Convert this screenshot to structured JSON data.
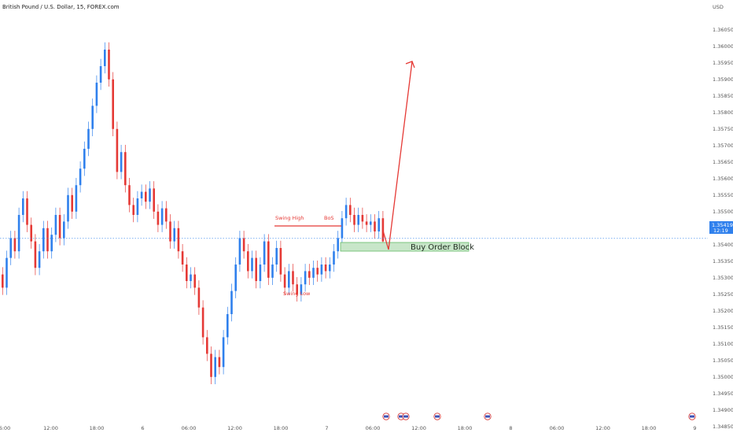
{
  "header": {
    "symbol": "British Pound / U.S. Dollar, 15, FOREX.com"
  },
  "colors": {
    "up": "#2f80ed",
    "down": "#e53935",
    "annotation": "#e53935",
    "block_fill": "#c8e6c9",
    "block_stroke": "#66bb6a",
    "price_tag": "#2f80ed"
  },
  "chart_data": {
    "type": "candlestick",
    "title": "British Pound / U.S. Dollar, 15, FOREX.com",
    "xlabel": "",
    "ylabel": "",
    "currency": "USD",
    "ylim": [
      1.3484,
      1.3614
    ],
    "y_ticks": [
      "1.36050",
      "1.36000",
      "1.35950",
      "1.35900",
      "1.35850",
      "1.35800",
      "1.35750",
      "1.35700",
      "1.35650",
      "1.35600",
      "1.35550",
      "1.35500",
      "1.35450",
      "1.35400",
      "1.35350",
      "1.35300",
      "1.35250",
      "1.35200",
      "1.35150",
      "1.35100",
      "1.35050",
      "1.35000",
      "1.34950",
      "1.34900",
      "1.34850"
    ],
    "x_ticks": [
      "6:00",
      "12:00",
      "18:00",
      "6",
      "06:00",
      "12:00",
      "18:00",
      "7",
      "06:00",
      "12:00",
      "18:00",
      "8",
      "06:00",
      "12:00",
      "18:00",
      "9"
    ],
    "current_price": "1.35419",
    "countdown": "12:19",
    "grid": false,
    "series": [
      {
        "points": [
          [
            1.3531,
            1.3527
          ],
          [
            1.3527,
            1.3536
          ],
          [
            1.3536,
            1.3542
          ],
          [
            1.3542,
            1.3538
          ],
          [
            1.3538,
            1.3549
          ],
          [
            1.3549,
            1.3554
          ],
          [
            1.3554,
            1.3546
          ],
          [
            1.3546,
            1.3541
          ],
          [
            1.3541,
            1.3533
          ],
          [
            1.3533,
            1.3538
          ],
          [
            1.3538,
            1.3545
          ],
          [
            1.3545,
            1.3538
          ],
          [
            1.3538,
            1.3543
          ],
          [
            1.3543,
            1.3549
          ],
          [
            1.3549,
            1.3542
          ],
          [
            1.3542,
            1.3547
          ],
          [
            1.3547,
            1.3555
          ],
          [
            1.3555,
            1.355
          ],
          [
            1.355,
            1.3558
          ],
          [
            1.3558,
            1.3563
          ],
          [
            1.3563,
            1.3569
          ],
          [
            1.3569,
            1.3575
          ],
          [
            1.3575,
            1.3582
          ],
          [
            1.3582,
            1.3589
          ],
          [
            1.3589,
            1.3594
          ],
          [
            1.3594,
            1.3599
          ],
          [
            1.3599,
            1.359
          ],
          [
            1.359,
            1.3575
          ],
          [
            1.3575,
            1.3562
          ],
          [
            1.3562,
            1.3568
          ],
          [
            1.3568,
            1.3558
          ],
          [
            1.3558,
            1.3552
          ],
          [
            1.3552,
            1.3549
          ],
          [
            1.3549,
            1.3554
          ],
          [
            1.3554,
            1.3556
          ],
          [
            1.3556,
            1.3553
          ],
          [
            1.3553,
            1.3557
          ],
          [
            1.3557,
            1.355
          ],
          [
            1.355,
            1.3546
          ],
          [
            1.3546,
            1.3551
          ],
          [
            1.3551,
            1.3547
          ],
          [
            1.3547,
            1.3541
          ],
          [
            1.3541,
            1.3545
          ],
          [
            1.3545,
            1.3538
          ],
          [
            1.3538,
            1.3534
          ],
          [
            1.3534,
            1.3529
          ],
          [
            1.3529,
            1.3531
          ],
          [
            1.3531,
            1.3527
          ],
          [
            1.3527,
            1.3521
          ],
          [
            1.3521,
            1.3512
          ],
          [
            1.3512,
            1.3507
          ],
          [
            1.3507,
            1.35
          ],
          [
            1.35,
            1.3506
          ],
          [
            1.3506,
            1.3503
          ],
          [
            1.3503,
            1.3512
          ],
          [
            1.3512,
            1.3519
          ],
          [
            1.3519,
            1.3526
          ],
          [
            1.3526,
            1.3534
          ],
          [
            1.3534,
            1.3542
          ],
          [
            1.3542,
            1.3538
          ],
          [
            1.3538,
            1.3532
          ],
          [
            1.3532,
            1.3536
          ],
          [
            1.3536,
            1.3529
          ],
          [
            1.3529,
            1.3534
          ],
          [
            1.3534,
            1.3541
          ],
          [
            1.3541,
            1.353
          ],
          [
            1.353,
            1.3534
          ],
          [
            1.3534,
            1.3539
          ],
          [
            1.3539,
            1.3531
          ],
          [
            1.3531,
            1.3527
          ],
          [
            1.3527,
            1.3532
          ],
          [
            1.3532,
            1.3528
          ],
          [
            1.3528,
            1.3525
          ],
          [
            1.3525,
            1.3528
          ],
          [
            1.3528,
            1.3532
          ],
          [
            1.3532,
            1.353
          ],
          [
            1.353,
            1.3533
          ],
          [
            1.3533,
            1.3531
          ],
          [
            1.3531,
            1.3534
          ],
          [
            1.3534,
            1.3532
          ],
          [
            1.3532,
            1.3534
          ],
          [
            1.3534,
            1.3538
          ],
          [
            1.3538,
            1.3542
          ],
          [
            1.3542,
            1.3548
          ],
          [
            1.3548,
            1.3552
          ],
          [
            1.3552,
            1.3549
          ],
          [
            1.3549,
            1.3546
          ],
          [
            1.3546,
            1.3549
          ],
          [
            1.3549,
            1.3547
          ],
          [
            1.3547,
            1.3546
          ],
          [
            1.3546,
            1.3547
          ],
          [
            1.3547,
            1.3544
          ],
          [
            1.3544,
            1.3548
          ],
          [
            1.3548,
            1.3541
          ]
        ]
      }
    ],
    "annotations": [
      "Swing High",
      "BoS",
      "Swing Low",
      "Buy Order Block"
    ]
  }
}
